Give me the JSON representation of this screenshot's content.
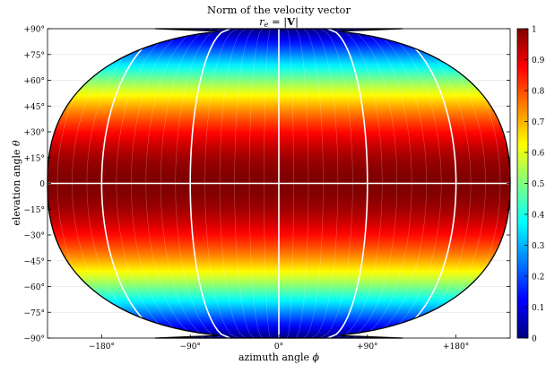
{
  "chart_data": {
    "type": "heatmap",
    "projection": "pseudocylindrical",
    "title": "Norm of the velocity vector",
    "subtitle_var": "r",
    "subtitle_sub": "e",
    "subtitle_eq": " = |",
    "subtitle_bold": "V",
    "subtitle_end": "|",
    "xlabel_text": "azimuth angle ",
    "xlabel_symbol": "ϕ",
    "ylabel_text": "elevation angle ",
    "ylabel_symbol": "θ",
    "xlim": [
      -235,
      235
    ],
    "ylim": [
      -90,
      90
    ],
    "x_ticks": [
      {
        "value": -180,
        "label": "−180°"
      },
      {
        "value": -90,
        "label": "−90°"
      },
      {
        "value": 0,
        "label": "0°"
      },
      {
        "value": 90,
        "label": "+90°"
      },
      {
        "value": 180,
        "label": "+180°"
      }
    ],
    "y_ticks": [
      {
        "value": 90,
        "label": "+90°"
      },
      {
        "value": 75,
        "label": "+75°"
      },
      {
        "value": 60,
        "label": "+60°"
      },
      {
        "value": 45,
        "label": "+45°"
      },
      {
        "value": 30,
        "label": "+30°"
      },
      {
        "value": 15,
        "label": "+15°"
      },
      {
        "value": 0,
        "label": "0"
      },
      {
        "value": -15,
        "label": "−15°"
      },
      {
        "value": -30,
        "label": "−30°"
      },
      {
        "value": -45,
        "label": "−45°"
      },
      {
        "value": -60,
        "label": "−60°"
      },
      {
        "value": -75,
        "label": "−75°"
      },
      {
        "value": -90,
        "label": "−90°"
      }
    ],
    "meridians": [
      -180,
      -90,
      0,
      90,
      180
    ],
    "colorbar": {
      "colormap": "jet",
      "range": [
        0,
        1
      ],
      "ticks": [
        {
          "value": 0,
          "label": "0"
        },
        {
          "value": 0.1,
          "label": "0.1"
        },
        {
          "value": 0.2,
          "label": "0.2"
        },
        {
          "value": 0.3,
          "label": "0.3"
        },
        {
          "value": 0.4,
          "label": "0.4"
        },
        {
          "value": 0.5,
          "label": "0.5"
        },
        {
          "value": 0.6,
          "label": "0.6"
        },
        {
          "value": 0.7,
          "label": "0.7"
        },
        {
          "value": 0.8,
          "label": "0.8"
        },
        {
          "value": 0.9,
          "label": "0.9"
        },
        {
          "value": 1,
          "label": "1"
        }
      ]
    },
    "field": "cos(elevation)",
    "band_values": [
      {
        "elevation": 90,
        "value": 0
      },
      {
        "elevation": 75,
        "value": 0.26
      },
      {
        "elevation": 60,
        "value": 0.5
      },
      {
        "elevation": 45,
        "value": 0.71
      },
      {
        "elevation": 30,
        "value": 0.87
      },
      {
        "elevation": 15,
        "value": 0.97
      },
      {
        "elevation": 0,
        "value": 1
      },
      {
        "elevation": -15,
        "value": 0.97
      },
      {
        "elevation": -30,
        "value": 0.87
      },
      {
        "elevation": -45,
        "value": 0.71
      },
      {
        "elevation": -60,
        "value": 0.5
      },
      {
        "elevation": -75,
        "value": 0.26
      },
      {
        "elevation": -90,
        "value": 0
      }
    ]
  }
}
